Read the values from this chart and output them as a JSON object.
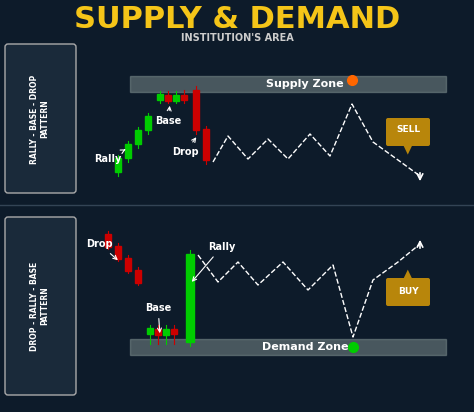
{
  "bg_color": "#0d1b2a",
  "title": "SUPPLY & DEMAND",
  "subtitle": "INSTITUTION'S AREA",
  "title_color": "#f5c518",
  "subtitle_color": "#cccccc",
  "supply_zone_color": "#7a8a8a",
  "demand_zone_color": "#7a8a8a",
  "supply_zone_label": "Supply Zone",
  "demand_zone_label": "Demand Zone",
  "top_pattern_label": "RALLY - BASE - DROP\nPATTERN",
  "bottom_pattern_label": "DROP - RALLY - BASE\nPATTERN",
  "box_color": "#1a2a3a",
  "box_edge_color": "#aaaaaa",
  "candle_green": "#00cc00",
  "candle_red": "#cc0000",
  "annotation_color": "#ffffff",
  "sell_color": "#b8860b",
  "buy_color": "#b8860b",
  "orange_dot": "#ff6600",
  "green_dot": "#00cc00"
}
